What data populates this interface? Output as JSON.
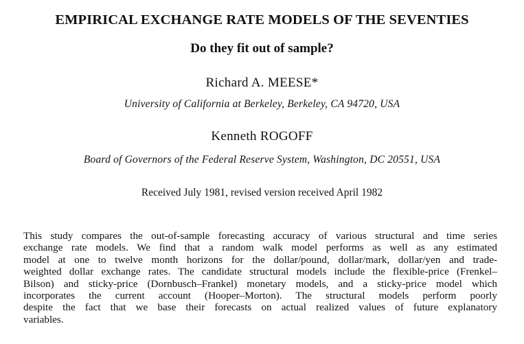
{
  "paper": {
    "title": "EMPIRICAL EXCHANGE RATE MODELS OF THE SEVENTIES",
    "subtitle": "Do they fit out of sample?",
    "authors": [
      {
        "name": "Richard A. MEESE*",
        "affiliation": "University of California at Berkeley, Berkeley, CA 94720, USA"
      },
      {
        "name": "Kenneth ROGOFF",
        "affiliation": "Board of Governors of the Federal Reserve System, Washington, DC 20551, USA"
      }
    ],
    "received": "Received July 1981, revised version received April 1982",
    "abstract_lines": [
      "This study compares the out-of-sample forecasting accuracy of various structural and time series",
      "exchange rate models. We find that a random walk model performs as well as any estimated",
      "model at one to twelve month horizons for the dollar/pound, dollar/mark, dollar/yen and trade-",
      "weighted dollar exchange rates. The candidate structural models include the flexible-price (Frenkel–",
      "Bilson) and sticky-price (Dornbusch–Frankel) monetary models, and a sticky-price model which",
      "incorporates the current account (Hooper–Morton). The structural models perform poorly",
      "despite the fact that we base their forecasts on actual realized values of future explanatory",
      "variables."
    ]
  }
}
